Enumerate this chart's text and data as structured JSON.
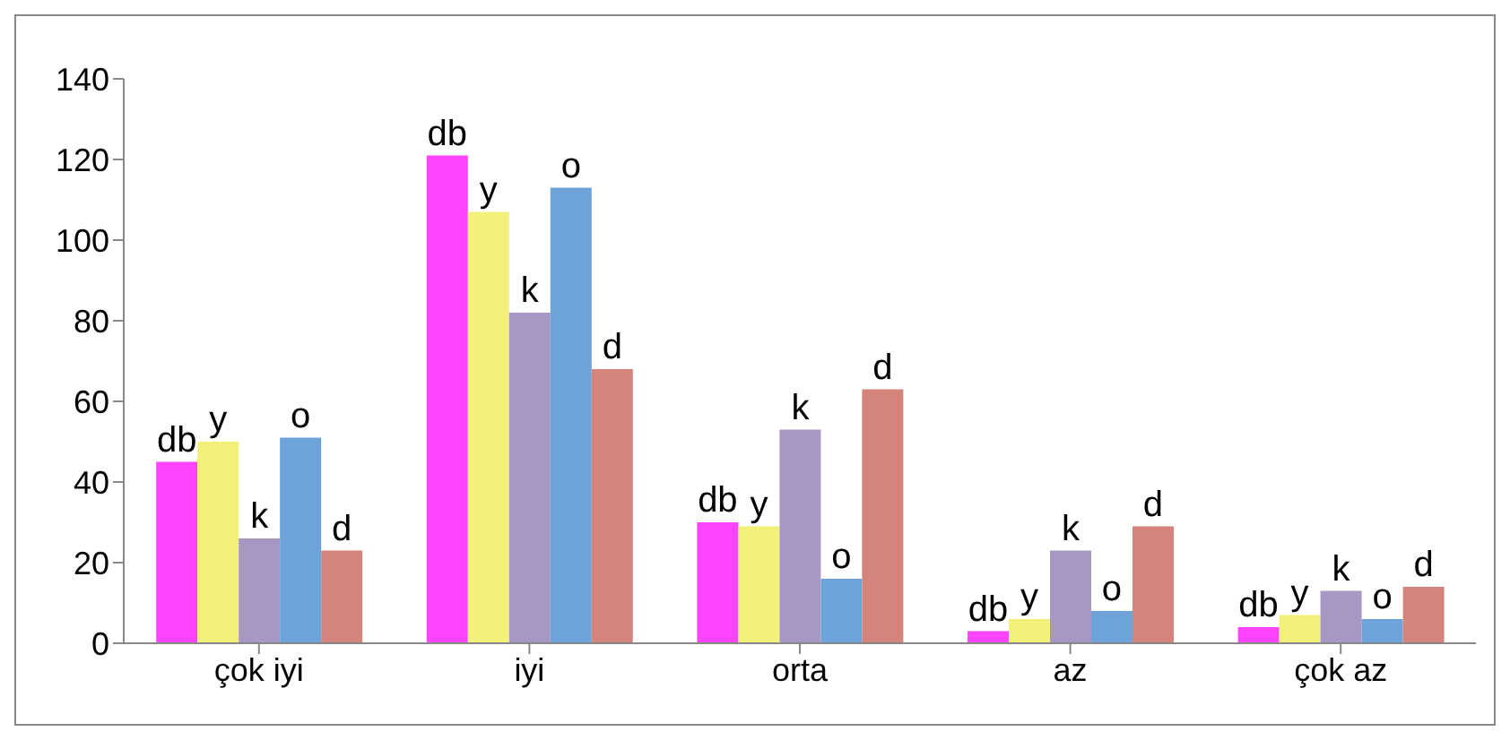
{
  "chart_data": {
    "type": "bar",
    "categories": [
      "çok iyi",
      "iyi",
      "orta",
      "az",
      "çok az"
    ],
    "series": [
      {
        "name": "db",
        "color": "#ff44ff",
        "values": [
          45,
          121,
          30,
          3,
          4
        ]
      },
      {
        "name": "y",
        "color": "#f2f27a",
        "values": [
          50,
          107,
          29,
          6,
          7
        ]
      },
      {
        "name": "k",
        "color": "#a797c4",
        "values": [
          26,
          82,
          53,
          23,
          13
        ]
      },
      {
        "name": "o",
        "color": "#6ea3d9",
        "values": [
          51,
          113,
          16,
          8,
          6
        ]
      },
      {
        "name": "d",
        "color": "#d4847b",
        "values": [
          23,
          68,
          63,
          29,
          14
        ]
      }
    ],
    "ylim": [
      0,
      140
    ],
    "yticks": [
      0,
      20,
      40,
      60,
      80,
      100,
      120,
      140
    ],
    "grid": false,
    "legend": false
  }
}
